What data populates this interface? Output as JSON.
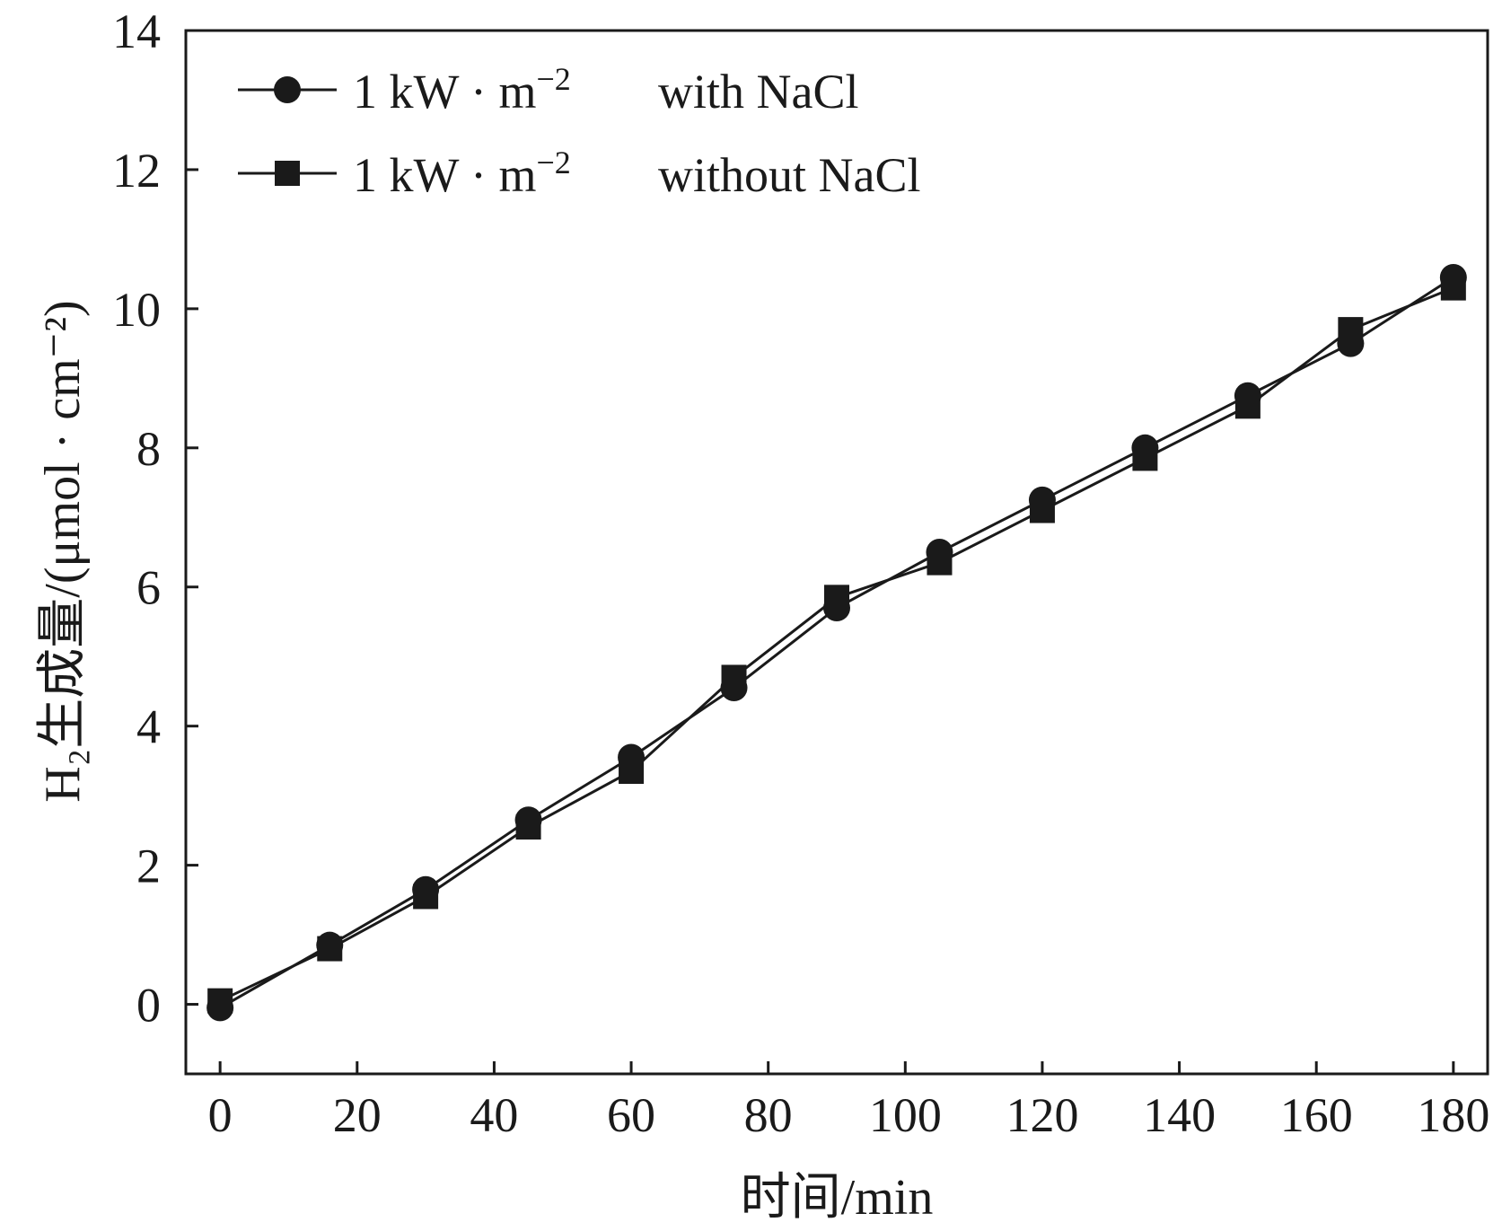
{
  "chart_data": {
    "type": "line",
    "title": "",
    "xlabel": "时间/min",
    "ylabel": "H₂生成量/(μmol · cm⁻²)",
    "xlim": [
      -5,
      185
    ],
    "ylim": [
      -1,
      14
    ],
    "xticks": [
      0,
      20,
      40,
      60,
      80,
      100,
      120,
      140,
      160,
      180
    ],
    "yticks": [
      0,
      2,
      4,
      6,
      8,
      10,
      12,
      14
    ],
    "xtick_labels": [
      "0",
      "20",
      "40",
      "60",
      "80",
      "100",
      "120",
      "140",
      "160",
      "180"
    ],
    "ytick_labels": [
      "0",
      "2",
      "4",
      "6",
      "8",
      "10",
      "12",
      "14"
    ],
    "grid": false,
    "legend_position": "top-left",
    "series": [
      {
        "name": "1 kW · m⁻²   with NaCl",
        "label_prefix": "1 kW · m",
        "label_exp": "−2",
        "label_suffix": "with NaCl",
        "marker": "circle",
        "x": [
          0,
          16,
          30,
          45,
          60,
          75,
          90,
          105,
          120,
          135,
          150,
          165,
          180
        ],
        "values": [
          -0.05,
          0.85,
          1.65,
          2.65,
          3.55,
          4.55,
          5.7,
          6.5,
          7.25,
          8.0,
          8.75,
          9.5,
          10.45
        ]
      },
      {
        "name": "1 kW · m⁻²   without NaCl",
        "label_prefix": "1 kW · m",
        "label_exp": "−2",
        "label_suffix": "without NaCl",
        "marker": "square",
        "x": [
          0,
          16,
          30,
          45,
          60,
          75,
          90,
          105,
          120,
          135,
          150,
          165,
          180
        ],
        "values": [
          0.05,
          0.8,
          1.55,
          2.55,
          3.35,
          4.7,
          5.85,
          6.35,
          7.1,
          7.85,
          8.6,
          9.7,
          10.3
        ]
      }
    ]
  }
}
